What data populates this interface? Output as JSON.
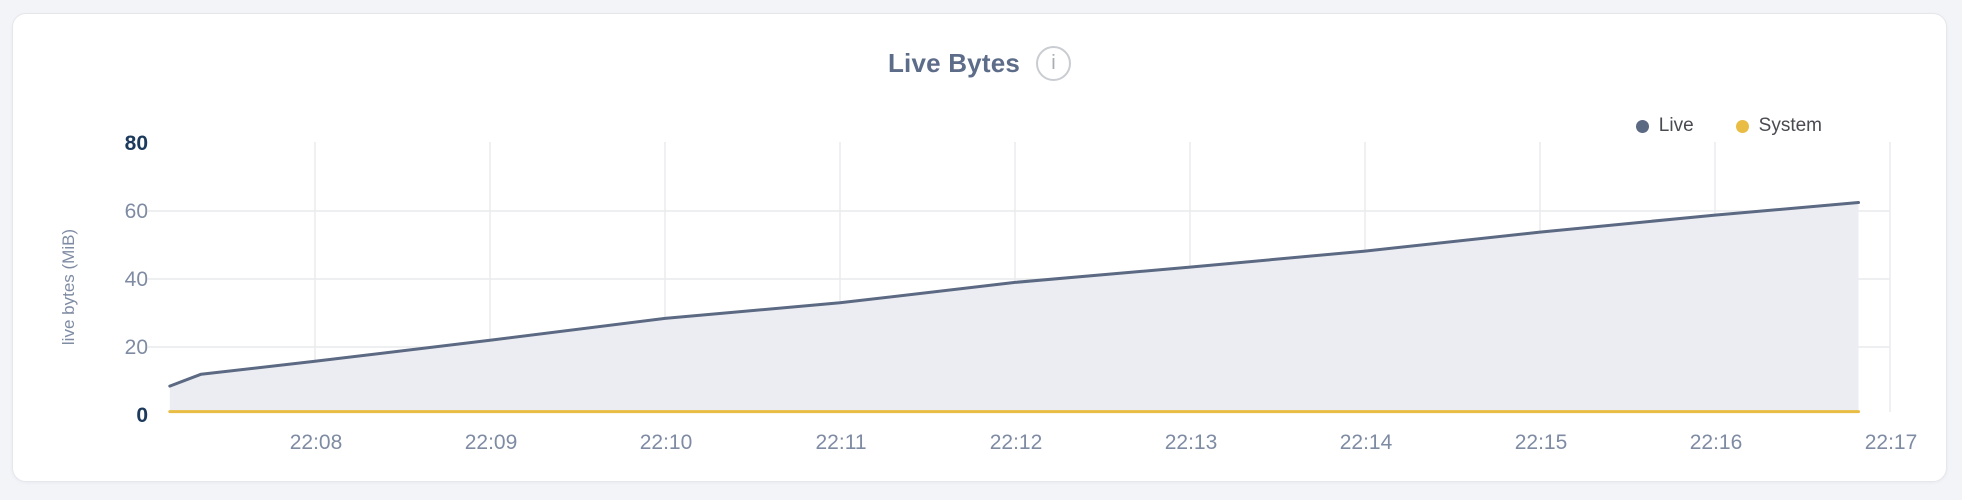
{
  "header": {
    "title": "Live Bytes",
    "info_icon": "i"
  },
  "legend": {
    "items": [
      {
        "label": "Live",
        "color": "#5c6983"
      },
      {
        "label": "System",
        "color": "#e9bc44"
      }
    ]
  },
  "y_axis": {
    "title": "live bytes (MiB)",
    "ticks": [
      {
        "label": "80",
        "value": 80,
        "bold": true
      },
      {
        "label": "60",
        "value": 60,
        "bold": false
      },
      {
        "label": "40",
        "value": 40,
        "bold": false
      },
      {
        "label": "20",
        "value": 20,
        "bold": false
      },
      {
        "label": "0",
        "value": 0,
        "bold": true
      }
    ]
  },
  "x_axis": {
    "ticks": [
      "22:08",
      "22:09",
      "22:10",
      "22:11",
      "22:12",
      "22:13",
      "22:14",
      "22:15",
      "22:16",
      "22:17"
    ]
  },
  "chart_data": {
    "type": "area",
    "title": "Live Bytes",
    "xlabel": "",
    "ylabel": "live bytes (MiB)",
    "ylim": [
      0,
      80
    ],
    "x_tick_labels": [
      "22:08",
      "22:09",
      "22:10",
      "22:11",
      "22:12",
      "22:13",
      "22:14",
      "22:15",
      "22:16",
      "22:17"
    ],
    "x_range_minutes_after_2200": [
      7.17,
      16.82
    ],
    "grid": true,
    "legend_position": "top-right",
    "series": [
      {
        "name": "Live",
        "color": "#5c6983",
        "fill": "#ecedf3",
        "x_minutes_after_2200": [
          7.17,
          7.35,
          8,
          9,
          10,
          11,
          12,
          13,
          14,
          15,
          16,
          16.82
        ],
        "values_mib": [
          8.5,
          12,
          15.8,
          22,
          28.4,
          33,
          39,
          43.5,
          48.2,
          53.8,
          58.8,
          62.5
        ]
      },
      {
        "name": "System",
        "color": "#e9bc44",
        "fill": null,
        "x_minutes_after_2200": [
          7.17,
          7.35,
          8,
          9,
          10,
          11,
          12,
          13,
          14,
          15,
          16,
          16.82
        ],
        "values_mib": [
          1,
          1,
          1,
          1,
          1,
          1,
          1,
          1,
          1,
          1,
          1,
          1
        ]
      }
    ]
  },
  "colors": {
    "page_background": "#f2f4f8",
    "card_background": "#ffffff",
    "card_border": "#e6e7eb",
    "title_text": "#5c6c89",
    "tick_text": "#7e8ba3",
    "tick_text_bold": "#1b3a5c",
    "legend_text": "#4a4b52",
    "gridline": "#e9eaec",
    "live_line": "#5c6983",
    "live_area_fill": "#ecedf3",
    "system_line": "#e9bc44"
  }
}
